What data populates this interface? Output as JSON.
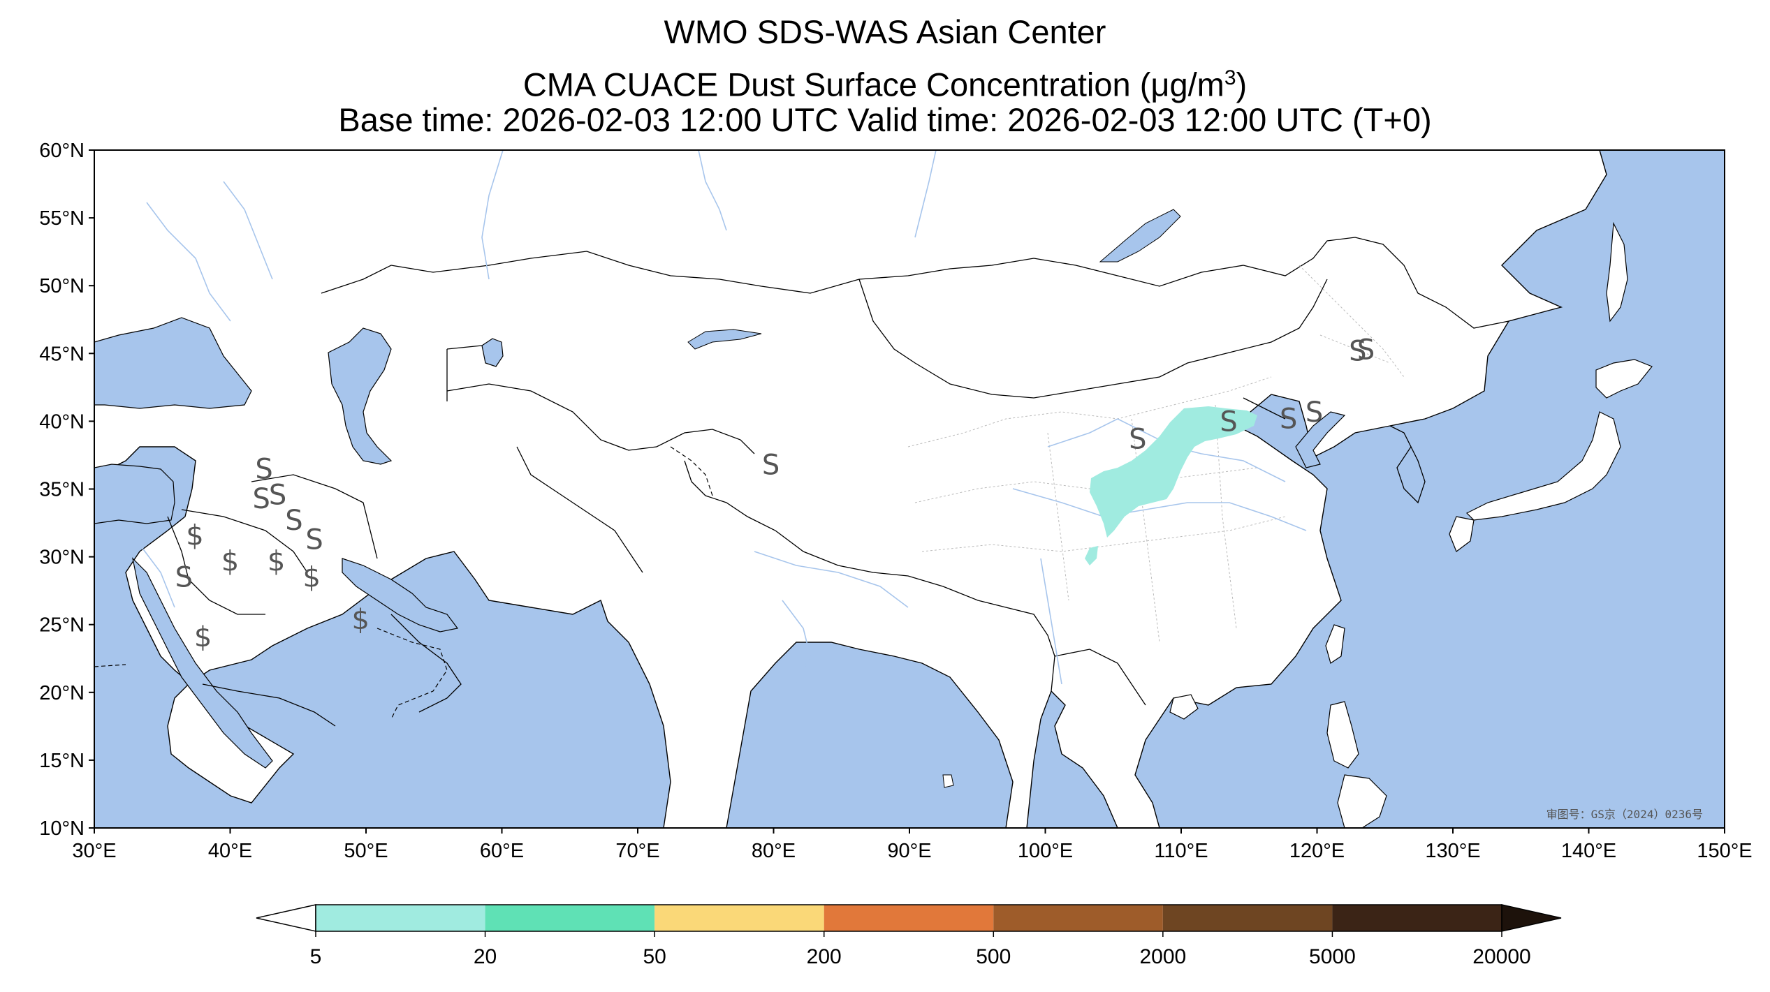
{
  "header": {
    "title": "WMO SDS-WAS Asian Center",
    "subtitle_prefix": "CMA CUACE Dust Surface Concentration (",
    "subtitle_unit_mu": "μ",
    "subtitle_unit_base": "g/m",
    "subtitle_unit_exp": "3",
    "subtitle_suffix": ")",
    "time_line": "Base time: 2026-02-03 12:00 UTC Valid time: 2026-02-03 12:00 UTC (T+0)"
  },
  "map": {
    "extent": {
      "lon_min": 30,
      "lon_max": 150,
      "lat_min": 10,
      "lat_max": 60
    },
    "colors": {
      "ocean": "#a7c5ec",
      "land": "#ffffff",
      "border": "#000000",
      "river": "#a7c5ec",
      "province": "#bbbbbb"
    },
    "lat_labels": [
      "60°N",
      "55°N",
      "50°N",
      "45°N",
      "40°N",
      "35°N",
      "30°N",
      "25°N",
      "20°N",
      "15°N",
      "10°N"
    ],
    "lat_values": [
      60,
      55,
      50,
      45,
      40,
      35,
      30,
      25,
      20,
      15,
      10
    ],
    "lon_labels": [
      "30°E",
      "40°E",
      "50°E",
      "60°E",
      "70°E",
      "80°E",
      "90°E",
      "100°E",
      "110°E",
      "120°E",
      "130°E",
      "140°E",
      "150°E"
    ],
    "lon_values": [
      30,
      40,
      50,
      60,
      70,
      80,
      90,
      100,
      110,
      120,
      130,
      140,
      150
    ],
    "dust_region_color": "#a0ebe0",
    "dust_region_label": "5-20 μg/m3 dust concentration",
    "weather_symbols": [
      {
        "glyph": "S",
        "lon": 42.5,
        "lat": 36.5
      },
      {
        "glyph": "S",
        "lon": 42.3,
        "lat": 34.3
      },
      {
        "glyph": "S",
        "lon": 43.5,
        "lat": 34.6
      },
      {
        "glyph": "S",
        "lon": 44.7,
        "lat": 32.7
      },
      {
        "glyph": "S",
        "lon": 46.2,
        "lat": 31.3
      },
      {
        "glyph": "$",
        "lon": 37.4,
        "lat": 31.6
      },
      {
        "glyph": "$",
        "lon": 40.0,
        "lat": 29.7
      },
      {
        "glyph": "$",
        "lon": 43.4,
        "lat": 29.7
      },
      {
        "glyph": "$",
        "lon": 46.0,
        "lat": 28.5
      },
      {
        "glyph": "S",
        "lon": 36.6,
        "lat": 28.5
      },
      {
        "glyph": "$",
        "lon": 38.0,
        "lat": 24.1
      },
      {
        "glyph": "$",
        "lon": 49.6,
        "lat": 25.4
      },
      {
        "glyph": "S",
        "lon": 79.8,
        "lat": 36.8
      },
      {
        "glyph": "S",
        "lon": 106.8,
        "lat": 38.7
      },
      {
        "glyph": "S",
        "lon": 113.5,
        "lat": 40.0
      },
      {
        "glyph": "S",
        "lon": 117.9,
        "lat": 40.2
      },
      {
        "glyph": "S",
        "lon": 119.8,
        "lat": 40.7
      },
      {
        "glyph": "S",
        "lon": 123.0,
        "lat": 45.2
      },
      {
        "glyph": "S",
        "lon": 123.6,
        "lat": 45.3
      }
    ],
    "approval_text": "审图号：GS京（2024）0236号"
  },
  "colorbar": {
    "tick_labels": [
      "5",
      "20",
      "50",
      "200",
      "500",
      "2000",
      "5000",
      "20000"
    ],
    "bins": [
      {
        "from": 5,
        "to": 20,
        "color": "#a0ebe0"
      },
      {
        "from": 20,
        "to": 50,
        "color": "#5fe1b5"
      },
      {
        "from": 50,
        "to": 200,
        "color": "#fad878"
      },
      {
        "from": 200,
        "to": 500,
        "color": "#e1783a"
      },
      {
        "from": 500,
        "to": 2000,
        "color": "#9e5c2a"
      },
      {
        "from": 2000,
        "to": 5000,
        "color": "#6e4522"
      },
      {
        "from": 5000,
        "to": 20000,
        "color": "#3b2416"
      }
    ],
    "under_color": "#ffffff",
    "over_color": "#1d120b"
  }
}
